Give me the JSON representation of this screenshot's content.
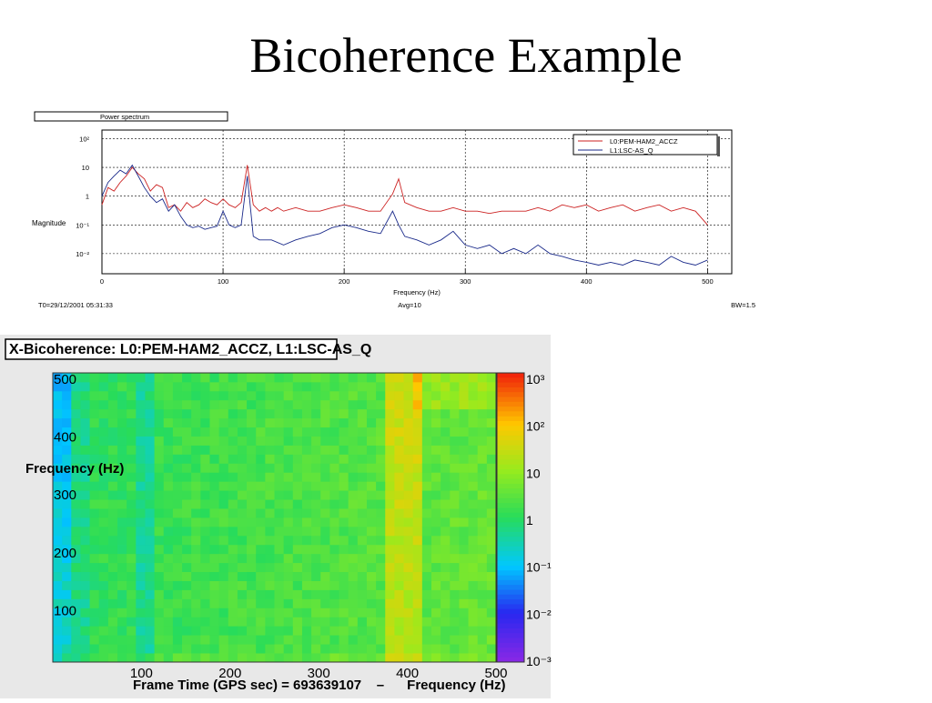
{
  "slide": {
    "title": "Bicoherence Example"
  },
  "chart_data": [
    {
      "type": "line",
      "title": "Power spectrum",
      "xlabel": "Frequency (Hz)",
      "ylabel": "Magnitude",
      "xlim": [
        0,
        520
      ],
      "ylim_log10": [
        -2.7,
        2.3
      ],
      "y_scale": "log",
      "grid": true,
      "legend": "top-right",
      "x_ticks": [
        "0",
        "100",
        "200",
        "300",
        "400",
        "500"
      ],
      "x_tick_values": [
        0,
        100,
        200,
        300,
        400,
        500
      ],
      "y_ticks": [
        "10²",
        "10",
        "1",
        "10⁻¹",
        "10⁻²"
      ],
      "y_tick_log10": [
        2,
        1,
        0,
        -1,
        -2
      ],
      "footer": {
        "left": "T0=29/12/2001 05:31:33",
        "center": "Avg=10",
        "right": "BW=1.5"
      },
      "series": [
        {
          "name": "L0:PEM-HAM2_ACCZ",
          "color": "#cc2222",
          "x": [
            0,
            5,
            10,
            15,
            20,
            25,
            30,
            35,
            40,
            45,
            50,
            55,
            60,
            65,
            70,
            75,
            80,
            85,
            90,
            95,
            100,
            105,
            110,
            115,
            120,
            125,
            130,
            135,
            140,
            145,
            150,
            160,
            170,
            180,
            190,
            200,
            210,
            220,
            230,
            240,
            245,
            250,
            260,
            270,
            280,
            290,
            300,
            310,
            320,
            330,
            340,
            350,
            360,
            370,
            380,
            390,
            400,
            410,
            420,
            430,
            440,
            450,
            460,
            470,
            480,
            490,
            500
          ],
          "y": [
            0.5,
            2,
            1.5,
            3,
            5,
            10,
            6,
            4,
            1.5,
            2.5,
            2,
            0.4,
            0.5,
            0.3,
            0.6,
            0.4,
            0.5,
            0.8,
            0.6,
            0.5,
            0.8,
            0.5,
            0.4,
            0.6,
            12,
            0.5,
            0.3,
            0.4,
            0.3,
            0.4,
            0.3,
            0.4,
            0.3,
            0.3,
            0.4,
            0.5,
            0.4,
            0.3,
            0.3,
            1.2,
            4,
            0.6,
            0.4,
            0.3,
            0.3,
            0.4,
            0.3,
            0.3,
            0.25,
            0.3,
            0.3,
            0.3,
            0.4,
            0.3,
            0.5,
            0.4,
            0.5,
            0.3,
            0.4,
            0.5,
            0.3,
            0.4,
            0.5,
            0.3,
            0.4,
            0.3,
            0.1
          ]
        },
        {
          "name": "L1:LSC-AS_Q",
          "color": "#1a2a8a",
          "x": [
            0,
            5,
            10,
            15,
            20,
            25,
            30,
            35,
            40,
            45,
            50,
            55,
            60,
            65,
            70,
            75,
            80,
            85,
            90,
            95,
            100,
            105,
            110,
            115,
            120,
            125,
            130,
            140,
            150,
            160,
            170,
            180,
            190,
            200,
            210,
            220,
            230,
            240,
            245,
            250,
            260,
            270,
            280,
            290,
            300,
            310,
            320,
            330,
            340,
            350,
            360,
            370,
            380,
            390,
            400,
            410,
            420,
            430,
            440,
            450,
            460,
            470,
            480,
            490,
            500
          ],
          "y": [
            1,
            3,
            5,
            8,
            6,
            12,
            5,
            2,
            1,
            0.6,
            0.8,
            0.3,
            0.5,
            0.2,
            0.1,
            0.08,
            0.09,
            0.07,
            0.08,
            0.09,
            0.3,
            0.1,
            0.08,
            0.1,
            5,
            0.04,
            0.03,
            0.03,
            0.02,
            0.03,
            0.04,
            0.05,
            0.08,
            0.1,
            0.08,
            0.06,
            0.05,
            0.3,
            0.1,
            0.04,
            0.03,
            0.02,
            0.03,
            0.06,
            0.02,
            0.015,
            0.02,
            0.01,
            0.015,
            0.01,
            0.02,
            0.01,
            0.008,
            0.006,
            0.005,
            0.004,
            0.005,
            0.004,
            0.006,
            0.005,
            0.004,
            0.008,
            0.005,
            0.004,
            0.006
          ]
        }
      ]
    },
    {
      "type": "heatmap",
      "title": "X-Bicoherence: L0:PEM-HAM2_ACCZ,  L1:LSC-AS_Q",
      "xlabel": "Frame Time (GPS sec) = 693639107    –      Frequency (Hz)",
      "ylabel": "Frequency (Hz)",
      "xlim": [
        0,
        500
      ],
      "ylim": [
        0,
        500
      ],
      "x_ticks": [
        "100",
        "200",
        "300",
        "400",
        "500"
      ],
      "x_tick_values": [
        100,
        200,
        300,
        400,
        500
      ],
      "y_ticks": [
        "100",
        "200",
        "300",
        "400",
        "500"
      ],
      "y_tick_values": [
        100,
        200,
        300,
        400,
        500
      ],
      "color_scale": "log",
      "colorbar_ticks": [
        "10⁻³",
        "10⁻²",
        "10⁻¹",
        "1",
        "10",
        "10²",
        "10³"
      ],
      "colorbar_tick_log10": [
        -3,
        -2,
        -1,
        0,
        1,
        2,
        3
      ],
      "grid_cols": 48,
      "grid_rows": 32,
      "bright_freq_columns_hz": [
        385,
        405
      ],
      "dark_freq_columns_hz": [
        10,
        105
      ]
    }
  ]
}
